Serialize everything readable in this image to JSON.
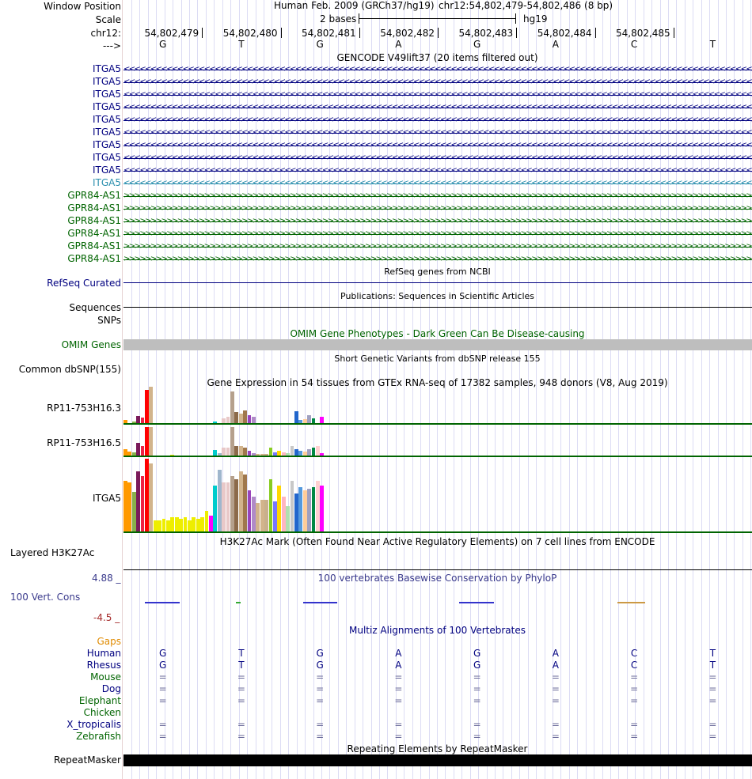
{
  "colors": {
    "navy": "#000080",
    "itga5_hi": "#2b8fae",
    "green": "#006400",
    "omim_bar": "#bebebe",
    "cons_lo": "#a52a2a",
    "cons_label": "#3a3a8c",
    "gaps": "#e08b00",
    "gtex_line": "#006400",
    "grid": "#dcdcf4"
  },
  "header": {
    "window_position_label": "Window Position",
    "scale_label": "Scale",
    "chrom_label": "chr12:",
    "strand_label": "--->",
    "assembly_title": "Human Feb. 2009 (GRCh37/hg19)",
    "position_text": "chr12:54,802,479-54,802,486 (8 bp)",
    "scale_text": "2 bases",
    "scale_db": "hg19"
  },
  "ruler": {
    "positions": [
      "54,802,479",
      "54,802,480",
      "54,802,481",
      "54,802,482",
      "54,802,483",
      "54,802,484",
      "54,802,485"
    ],
    "bases": [
      "G",
      "T",
      "G",
      "A",
      "G",
      "A",
      "C",
      "T"
    ]
  },
  "gencode": {
    "title": "GENCODE V49lift37 (20 items filtered out)",
    "transcripts": [
      {
        "name": "ITGA5",
        "dir": "left",
        "color": "#000080"
      },
      {
        "name": "ITGA5",
        "dir": "left",
        "color": "#000080"
      },
      {
        "name": "ITGA5",
        "dir": "left",
        "color": "#000080"
      },
      {
        "name": "ITGA5",
        "dir": "left",
        "color": "#000080"
      },
      {
        "name": "ITGA5",
        "dir": "left",
        "color": "#000080"
      },
      {
        "name": "ITGA5",
        "dir": "left",
        "color": "#000080"
      },
      {
        "name": "ITGA5",
        "dir": "left",
        "color": "#000080"
      },
      {
        "name": "ITGA5",
        "dir": "left",
        "color": "#000080"
      },
      {
        "name": "ITGA5",
        "dir": "left",
        "color": "#000080"
      },
      {
        "name": "ITGA5",
        "dir": "left",
        "color": "#2b8fae"
      },
      {
        "name": "GPR84-AS1",
        "dir": "right",
        "color": "#006400"
      },
      {
        "name": "GPR84-AS1",
        "dir": "right",
        "color": "#006400"
      },
      {
        "name": "GPR84-AS1",
        "dir": "right",
        "color": "#006400"
      },
      {
        "name": "GPR84-AS1",
        "dir": "right",
        "color": "#006400"
      },
      {
        "name": "GPR84-AS1",
        "dir": "right",
        "color": "#006400"
      },
      {
        "name": "GPR84-AS1",
        "dir": "right",
        "color": "#006400"
      }
    ]
  },
  "refseq": {
    "title": "RefSeq genes from NCBI",
    "label": "RefSeq Curated"
  },
  "publications": {
    "title": "Publications: Sequences in Scientific Articles",
    "label": "Sequences"
  },
  "snps": {
    "label": "SNPs"
  },
  "omim": {
    "title": "OMIM Gene Phenotypes - Dark Green Can Be Disease-causing",
    "label": "OMIM Genes"
  },
  "dbsnp": {
    "title": "Short Genetic Variants from dbSNP release 155",
    "label": "Common dbSNP(155)"
  },
  "gtex": {
    "title": "Gene Expression in 54 tissues from GTEx RNA-seq of 17382 samples, 948 donors (V8, Aug 2019)",
    "genes": [
      "RP11-753H16.3",
      "RP11-753H16.5",
      "ITGA5"
    ]
  },
  "h3k27ac": {
    "title": "H3K27Ac Mark (Often Found Near Active Regulatory Elements) on 7 cell lines from ENCODE",
    "label": "Layered H3K27Ac"
  },
  "conservation": {
    "title": "100 vertebrates Basewise Conservation by PhyloP",
    "label": "100 Vert. Cons",
    "max": "4.88 _",
    "min": "-4.5 _"
  },
  "multiz": {
    "title": "Multiz Alignments of 100 Vertebrates",
    "gaps_label": "Gaps",
    "species": [
      {
        "name": "Human",
        "color": "#000080",
        "row": "G T G A G A C T"
      },
      {
        "name": "Rhesus",
        "color": "#000080",
        "row": "G T G A G A C T"
      },
      {
        "name": "Mouse",
        "color": "#006400",
        "row": "= = = = = = = ="
      },
      {
        "name": "Dog",
        "color": "#000080",
        "row": "= = = = = = = ="
      },
      {
        "name": "Elephant",
        "color": "#006400",
        "row": "= = = = = = = ="
      },
      {
        "name": "Chicken",
        "color": "#006400",
        "row": ""
      },
      {
        "name": "X_tropicalis",
        "color": "#000080",
        "row": "= = = = = = = ="
      },
      {
        "name": "Zebrafish",
        "color": "#006400",
        "row": "= = = = = = = ="
      }
    ]
  },
  "repeatmasker": {
    "title": "Repeating Elements by RepeatMasker",
    "label": "RepeatMasker"
  }
}
